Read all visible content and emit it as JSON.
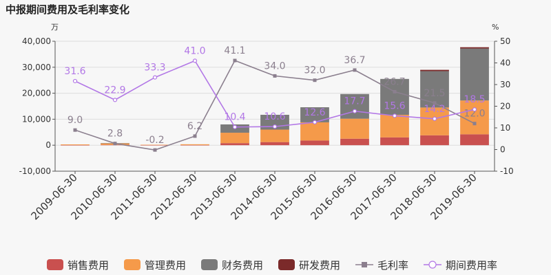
{
  "chart_data": {
    "type": "bar",
    "title": "中报期间费用及毛利率变化",
    "left_unit": "万",
    "right_unit": "%",
    "categories": [
      "2009-06-30",
      "2010-06-30",
      "2011-06-30",
      "2012-06-30",
      "2013-06-30",
      "2014-06-30",
      "2015-06-30",
      "2016-06-30",
      "2017-06-30",
      "2018-06-30",
      "2019-06-30"
    ],
    "y_left": {
      "min": -10000,
      "max": 40000,
      "ticks": [
        "-10,000",
        "0",
        "10,000",
        "20,000",
        "30,000",
        "40,000"
      ],
      "tick_values": [
        -10000,
        0,
        10000,
        20000,
        30000,
        40000
      ]
    },
    "y_right": {
      "min": -10,
      "max": 50,
      "ticks": [
        "-10",
        "0",
        "10",
        "20",
        "30",
        "40",
        "50"
      ],
      "tick_values": [
        -10,
        0,
        10,
        20,
        30,
        40,
        50
      ]
    },
    "bar_series": [
      {
        "name": "销售费用",
        "color": "#c9504f",
        "values": [
          50,
          150,
          30,
          60,
          800,
          1200,
          1800,
          2500,
          3000,
          3800,
          4200
        ]
      },
      {
        "name": "管理费用",
        "color": "#f59a4a",
        "values": [
          250,
          600,
          150,
          300,
          4000,
          4800,
          7000,
          7700,
          8700,
          10700,
          13000
        ]
      },
      {
        "name": "财务费用",
        "color": "#7a7a7a",
        "values": [
          0,
          30,
          0,
          0,
          3200,
          5700,
          5800,
          9500,
          13800,
          14000,
          20000
        ]
      },
      {
        "name": "研发费用",
        "color": "#7b2a2a",
        "values": [
          0,
          0,
          0,
          0,
          0,
          0,
          0,
          0,
          0,
          500,
          500
        ]
      }
    ],
    "line_series": [
      {
        "name": "毛利率",
        "color": "#8b7f8e",
        "marker": "square",
        "values": [
          9.0,
          2.8,
          -0.2,
          6.2,
          41.1,
          34.0,
          32.0,
          36.7,
          26.7,
          21.5,
          12.0
        ],
        "labels": [
          "9.0",
          "2.8",
          "-0.2",
          "6.2",
          "41.1",
          "34.0",
          "32.0",
          "36.7",
          "26.7",
          "21.5",
          "12.0"
        ]
      },
      {
        "name": "期间费用率",
        "color": "#b277e6",
        "marker": "circle",
        "values": [
          31.6,
          22.9,
          33.3,
          41.0,
          10.4,
          10.6,
          12.6,
          17.7,
          15.6,
          14.2,
          18.5
        ],
        "labels": [
          "31.6",
          "22.9",
          "33.3",
          "41.0",
          "10.4",
          "10.6",
          "12.6",
          "17.7",
          "15.6",
          "14.2",
          "18.5"
        ]
      }
    ],
    "legend_position": "bottom"
  }
}
